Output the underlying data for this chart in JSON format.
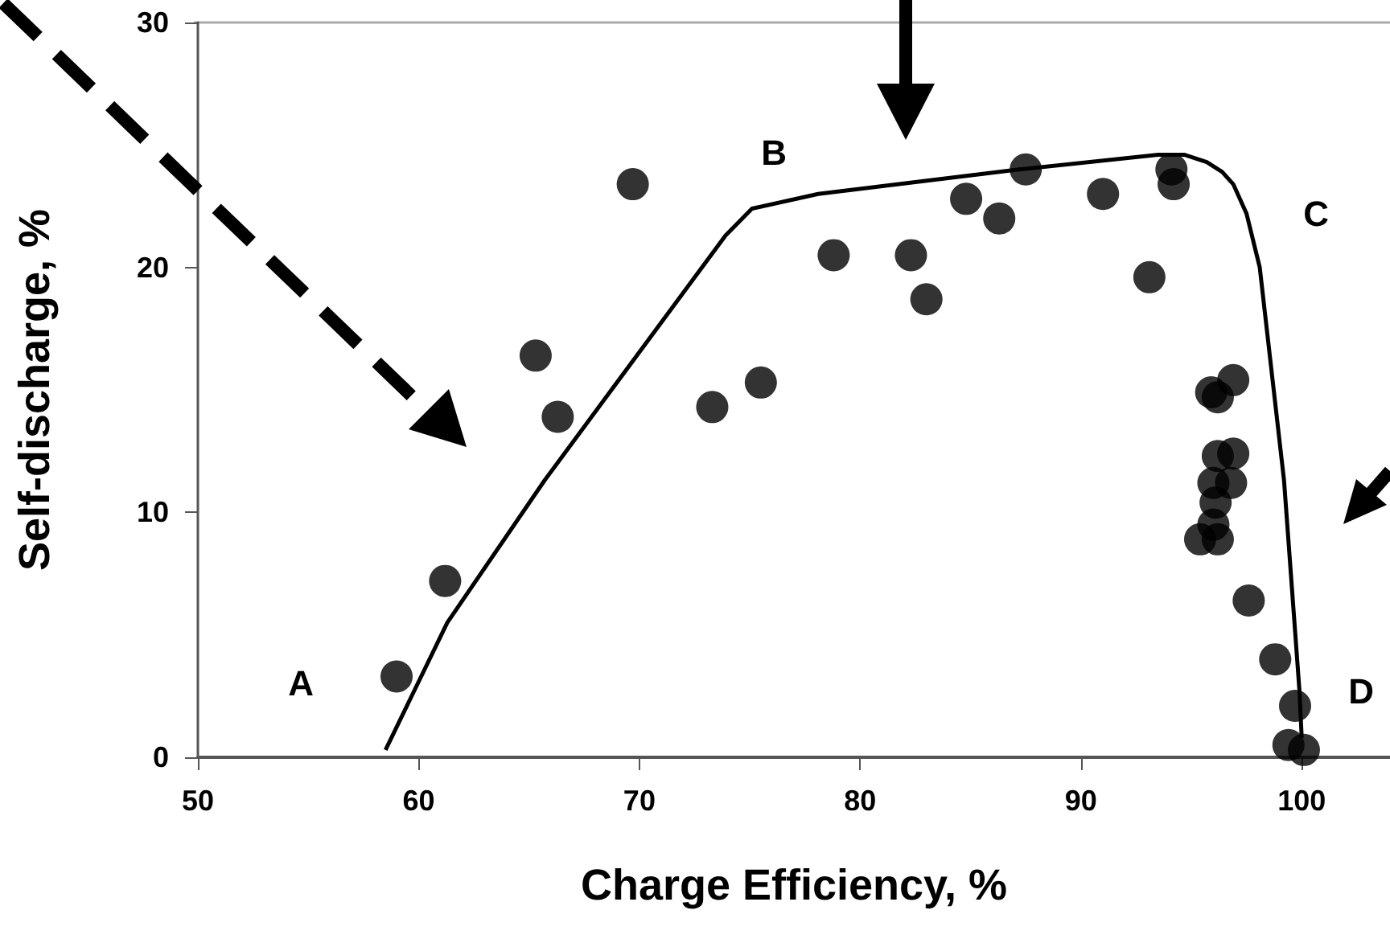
{
  "chart_data": {
    "type": "scatter",
    "xlabel": "Charge Efficiency, %",
    "ylabel": "Self-discharge, %",
    "xlim": [
      50,
      104
    ],
    "xticks": [
      50,
      60,
      70,
      80,
      90,
      100
    ],
    "ylim": [
      0,
      30
    ],
    "yticks": [
      0,
      10,
      20,
      30
    ],
    "grid": false,
    "series": [
      {
        "color": "#000000",
        "marker": "circle",
        "x": [
          59.0,
          61.2,
          65.3,
          66.3,
          69.7,
          73.3,
          75.5,
          78.8,
          82.3,
          83.0,
          84.8,
          86.3,
          87.5,
          91.0,
          93.1,
          94.1,
          94.2,
          95.9,
          96.9,
          96.2,
          96.2,
          96.9,
          96.8,
          96.0,
          96.1,
          96.0,
          95.4,
          96.2,
          97.6,
          98.8,
          99.7,
          99.4,
          100.1
        ],
        "values": [
          3.3,
          7.2,
          16.4,
          13.9,
          23.4,
          14.3,
          15.3,
          20.5,
          20.5,
          18.7,
          22.8,
          22.0,
          24.0,
          23.0,
          19.6,
          24.0,
          23.4,
          14.9,
          15.4,
          14.7,
          12.3,
          12.4,
          11.2,
          11.2,
          10.4,
          9.5,
          8.9,
          8.9,
          6.4,
          4.0,
          2.1,
          0.5,
          0.3
        ]
      },
      {
        "type": "line",
        "color": "#000000",
        "marker": "none",
        "line_style": "solid",
        "x": [
          58.5,
          61.3,
          65.7,
          73.9,
          75.1,
          78.1,
          87.2,
          93.5,
          94.7,
          95.7,
          96.4,
          96.9,
          97.5,
          98.1,
          99.2,
          99.9,
          100.0
        ],
        "values": [
          0.3,
          5.5,
          11.3,
          21.3,
          22.4,
          23.0,
          24.0,
          24.6,
          24.6,
          24.3,
          23.9,
          23.4,
          22.2,
          20.0,
          11.3,
          2.7,
          0.8
        ]
      }
    ],
    "annotations": [
      "A",
      "B",
      "C",
      "D"
    ]
  }
}
